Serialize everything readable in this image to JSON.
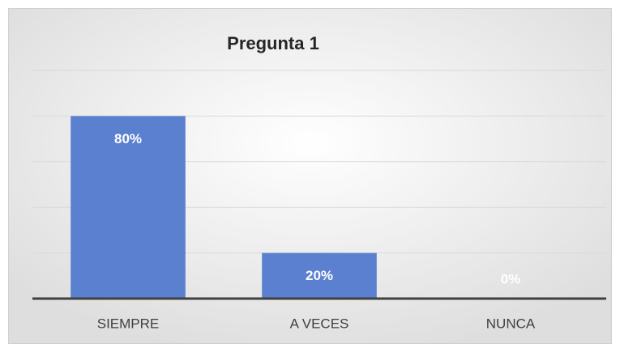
{
  "chart_data": {
    "type": "bar",
    "title": "Pregunta 1",
    "categories": [
      "SIEMPRE",
      "A VECES",
      "NUNCA"
    ],
    "values": [
      80,
      20,
      0
    ],
    "value_labels": [
      "80%",
      "20%",
      "0%"
    ],
    "color": "#5b80d0",
    "ylim": [
      0,
      100
    ],
    "yticks": [
      0,
      20,
      40,
      60,
      80,
      100
    ],
    "grid": true
  }
}
